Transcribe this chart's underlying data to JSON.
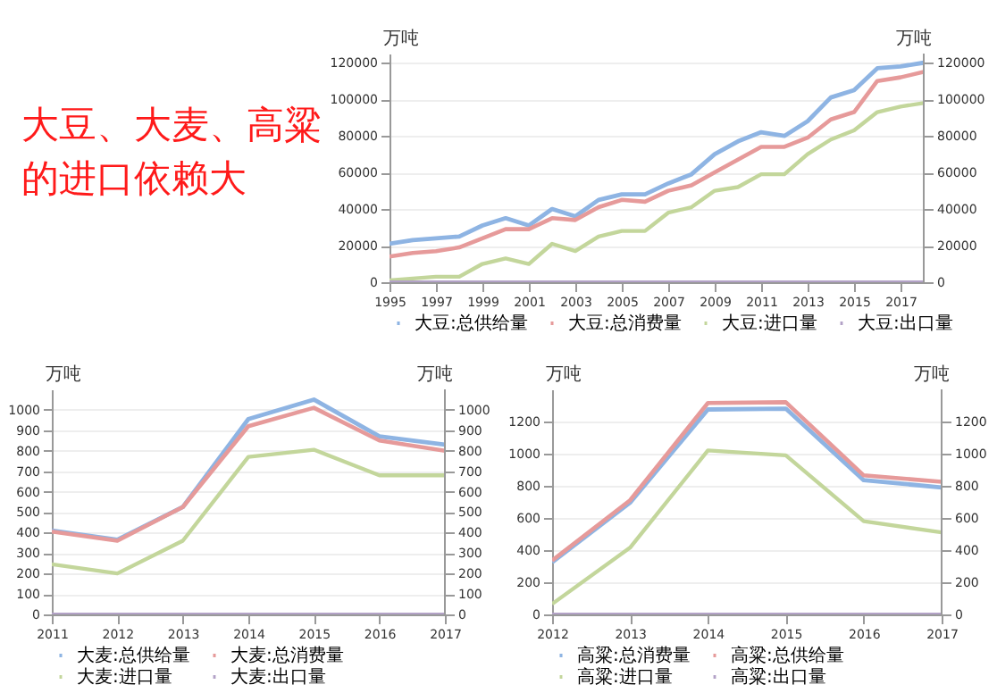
{
  "chart_data": [
    {
      "type": "other",
      "title": "大豆、大麦、高粱的进口依赖大"
    },
    {
      "type": "line",
      "ylabel": "万吨",
      "y2label": "万吨",
      "x": [
        1995,
        1996,
        1997,
        1998,
        1999,
        2000,
        2001,
        2002,
        2003,
        2004,
        2005,
        2006,
        2007,
        2008,
        2009,
        2010,
        2011,
        2012,
        2013,
        2014,
        2015,
        2016,
        2017,
        2018
      ],
      "xlim": [
        1995,
        2018
      ],
      "xticks": [
        1995,
        1997,
        1999,
        2001,
        2003,
        2005,
        2007,
        2009,
        2011,
        2013,
        2015,
        2017
      ],
      "ylim": [
        0,
        125000
      ],
      "yticks": [
        0,
        20000,
        40000,
        60000,
        80000,
        100000,
        120000
      ],
      "y2lim": [
        0,
        125000
      ],
      "y2ticks": [
        0,
        20000,
        40000,
        60000,
        80000,
        100000,
        120000
      ],
      "grid": "y",
      "legend": "bottom",
      "series": [
        {
          "name": "大豆:总供给量",
          "color": "#8eb4e3",
          "values": [
            21000,
            23000,
            24000,
            25000,
            31000,
            35000,
            31000,
            40000,
            36000,
            45000,
            48000,
            48000,
            54000,
            59000,
            70000,
            77000,
            82000,
            80000,
            88000,
            101000,
            105000,
            117000,
            118000,
            120000
          ]
        },
        {
          "name": "大豆:总消费量",
          "color": "#e69a9a",
          "values": [
            14000,
            16000,
            17000,
            19000,
            24000,
            29000,
            29000,
            35000,
            34000,
            41000,
            45000,
            44000,
            50000,
            53000,
            60000,
            67000,
            74000,
            74000,
            79000,
            89000,
            93000,
            110000,
            112000,
            115000
          ]
        },
        {
          "name": "大豆:进口量",
          "color": "#c3d69b",
          "values": [
            1000,
            2000,
            3000,
            3000,
            10000,
            13000,
            10000,
            21000,
            17000,
            25000,
            28000,
            28000,
            38000,
            41000,
            50000,
            52000,
            59000,
            59000,
            70000,
            78000,
            83000,
            93000,
            96000,
            98000
          ]
        },
        {
          "name": "大豆:出口量",
          "color": "#b3a2c7",
          "values": [
            0,
            0,
            0,
            0,
            0,
            0,
            0,
            0,
            0,
            0,
            0,
            0,
            0,
            0,
            0,
            0,
            0,
            0,
            0,
            0,
            0,
            0,
            0,
            0
          ]
        }
      ]
    },
    {
      "type": "line",
      "ylabel": "万吨",
      "y2label": "万吨",
      "x": [
        2011,
        2012,
        2013,
        2014,
        2015,
        2016,
        2017
      ],
      "xlim": [
        2011,
        2017
      ],
      "xticks": [
        2011,
        2012,
        2013,
        2014,
        2015,
        2016,
        2017
      ],
      "ylim": [
        0,
        1100
      ],
      "yticks": [
        0,
        100,
        200,
        300,
        400,
        500,
        600,
        700,
        800,
        900,
        1000
      ],
      "y2lim": [
        0,
        1100
      ],
      "y2ticks": [
        0,
        100,
        200,
        300,
        400,
        500,
        600,
        700,
        800,
        900,
        1000
      ],
      "grid": "y",
      "legend": "bottom",
      "series": [
        {
          "name": "大麦:总供给量",
          "color": "#8eb4e3",
          "values": [
            410,
            365,
            525,
            955,
            1050,
            870,
            830
          ]
        },
        {
          "name": "大麦:总消费量",
          "color": "#e69a9a",
          "values": [
            405,
            360,
            525,
            920,
            1010,
            850,
            800
          ]
        },
        {
          "name": "大麦:进口量",
          "color": "#c3d69b",
          "values": [
            245,
            200,
            360,
            770,
            805,
            680,
            680
          ]
        },
        {
          "name": "大麦:出口量",
          "color": "#b3a2c7",
          "values": [
            0,
            0,
            0,
            0,
            0,
            0,
            0
          ]
        }
      ]
    },
    {
      "type": "line",
      "ylabel": "万吨",
      "y2label": "万吨",
      "x": [
        2012,
        2013,
        2014,
        2015,
        2016,
        2017
      ],
      "xlim": [
        2012,
        2017
      ],
      "xticks": [
        2012,
        2013,
        2014,
        2015,
        2016,
        2017
      ],
      "ylim": [
        0,
        1400
      ],
      "yticks": [
        0,
        200,
        400,
        600,
        800,
        1000,
        1200
      ],
      "y2lim": [
        0,
        1400
      ],
      "y2ticks": [
        0,
        200,
        400,
        600,
        800,
        1000,
        1200
      ],
      "grid": "y",
      "legend": "bottom",
      "series": [
        {
          "name": "高粱:总消费量",
          "color": "#8eb4e3",
          "values": [
            325,
            695,
            1275,
            1280,
            835,
            790
          ]
        },
        {
          "name": "高粱:总供给量",
          "color": "#e69a9a",
          "values": [
            335,
            710,
            1315,
            1320,
            865,
            825
          ]
        },
        {
          "name": "高粱:进口量",
          "color": "#c3d69b",
          "values": [
            65,
            415,
            1020,
            990,
            580,
            510
          ]
        },
        {
          "name": "高粱:出口量",
          "color": "#b3a2c7",
          "values": [
            0,
            0,
            0,
            0,
            0,
            0
          ]
        }
      ]
    }
  ]
}
